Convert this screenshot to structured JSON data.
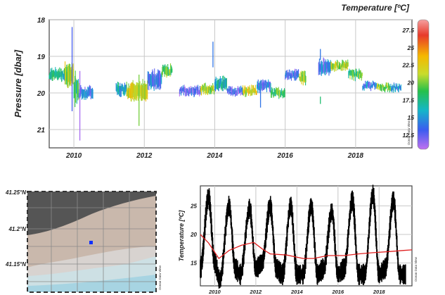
{
  "chart_data": [
    {
      "type": "scatter",
      "title": "Temperature [ºC]",
      "ylabel": "Pressure [dbar]",
      "xlabel": "",
      "xlim": [
        2009.3,
        2019.6
      ],
      "ylim": [
        21.5,
        18
      ],
      "y_reversed": true,
      "x_ticks": [
        "2010",
        "2012",
        "2014",
        "2016",
        "2018"
      ],
      "y_ticks": [
        "18",
        "19",
        "20",
        "21"
      ],
      "colorbar": {
        "ticks": [
          "27.5",
          "25",
          "22.5",
          "20",
          "17.5",
          "15",
          "12.5"
        ],
        "range": [
          10.5,
          29
        ],
        "credit": "Ocean Data View"
      },
      "segments": [
        {
          "t0": 2009.3,
          "t1": 2009.75,
          "p": 19.5,
          "spread": 0.2,
          "temp": 17
        },
        {
          "t0": 2009.75,
          "t1": 2010.0,
          "p": 19.5,
          "spread": 0.45,
          "temp": 21
        },
        {
          "t0": 2010.0,
          "t1": 2010.15,
          "p": 19.9,
          "spread": 0.6,
          "temp": 18
        },
        {
          "t0": 2010.15,
          "t1": 2010.55,
          "p": 20.0,
          "spread": 0.2,
          "temp": 14
        },
        {
          "t0": 2011.2,
          "t1": 2011.5,
          "p": 19.9,
          "spread": 0.2,
          "temp": 16
        },
        {
          "t0": 2011.5,
          "t1": 2012.1,
          "p": 19.95,
          "spread": 0.35,
          "temp": 22
        },
        {
          "t0": 2012.1,
          "t1": 2012.5,
          "p": 19.65,
          "spread": 0.35,
          "temp": 14
        },
        {
          "t0": 2012.5,
          "t1": 2012.8,
          "p": 19.4,
          "spread": 0.2,
          "temp": 19
        },
        {
          "t0": 2013.0,
          "t1": 2013.6,
          "p": 19.95,
          "spread": 0.15,
          "temp": 13
        },
        {
          "t0": 2013.6,
          "t1": 2014.0,
          "p": 19.9,
          "spread": 0.15,
          "temp": 21
        },
        {
          "t0": 2014.0,
          "t1": 2014.35,
          "p": 19.75,
          "spread": 0.25,
          "temp": 16
        },
        {
          "t0": 2014.35,
          "t1": 2014.8,
          "p": 19.95,
          "spread": 0.12,
          "temp": 13
        },
        {
          "t0": 2014.8,
          "t1": 2015.2,
          "p": 19.95,
          "spread": 0.15,
          "temp": 22
        },
        {
          "t0": 2015.2,
          "t1": 2015.6,
          "p": 19.8,
          "spread": 0.2,
          "temp": 14
        },
        {
          "t0": 2015.6,
          "t1": 2016.0,
          "p": 20.0,
          "spread": 0.15,
          "temp": 19
        },
        {
          "t0": 2016.0,
          "t1": 2016.4,
          "p": 19.5,
          "spread": 0.15,
          "temp": 13
        },
        {
          "t0": 2016.4,
          "t1": 2016.6,
          "p": 19.6,
          "spread": 0.2,
          "temp": 20
        },
        {
          "t0": 2016.95,
          "t1": 2017.3,
          "p": 19.3,
          "spread": 0.3,
          "temp": 14
        },
        {
          "t0": 2017.3,
          "t1": 2017.8,
          "p": 19.25,
          "spread": 0.15,
          "temp": 21
        },
        {
          "t0": 2017.8,
          "t1": 2018.2,
          "p": 19.5,
          "spread": 0.15,
          "temp": 19
        },
        {
          "t0": 2018.2,
          "t1": 2018.6,
          "p": 19.8,
          "spread": 0.12,
          "temp": 14
        },
        {
          "t0": 2018.6,
          "t1": 2019.0,
          "p": 19.85,
          "spread": 0.12,
          "temp": 20
        },
        {
          "t0": 2019.0,
          "t1": 2019.3,
          "p": 19.85,
          "spread": 0.12,
          "temp": 14
        }
      ],
      "spikes": [
        {
          "t": 2009.95,
          "p_min": 18.2,
          "p_max": 20.5,
          "temp": 13
        },
        {
          "t": 2010.17,
          "p_min": 19.4,
          "p_max": 21.3,
          "temp": 11
        },
        {
          "t": 2011.85,
          "p_min": 19.5,
          "p_max": 20.9,
          "temp": 20
        },
        {
          "t": 2013.95,
          "p_min": 18.6,
          "p_max": 19.3,
          "temp": 14
        },
        {
          "t": 2015.3,
          "p_min": 19.9,
          "p_max": 20.4,
          "temp": 14
        },
        {
          "t": 2017.0,
          "p_min": 18.8,
          "p_max": 19.1,
          "temp": 14
        },
        {
          "t": 2017.0,
          "p_min": 20.1,
          "p_max": 20.3,
          "temp": 18
        }
      ]
    },
    {
      "type": "map",
      "lat_ticks": [
        "41.25°N",
        "41.2°N",
        "41.15°N"
      ],
      "station": {
        "lat": 41.19,
        "lon": 0.5
      },
      "credit": "Ocean Data View"
    },
    {
      "type": "line",
      "ylabel": "Temperature [ºC]",
      "xlabel": "",
      "xlim": [
        2009.3,
        2019.6
      ],
      "ylim": [
        11,
        28.5
      ],
      "x_ticks": [
        "2010",
        "2012",
        "2014",
        "2016",
        "2018"
      ],
      "y_ticks": [
        "15",
        "20",
        "25"
      ],
      "credit": "Ocean Data View",
      "series": [
        {
          "style": "black",
          "x": [
            2009.3,
            2009.7,
            2010.0,
            2010.25,
            2010.7,
            2011.0,
            2011.25,
            2011.7,
            2012.0,
            2012.3,
            2012.7,
            2013.0,
            2013.3,
            2013.7,
            2014.0,
            2014.3,
            2014.7,
            2015.0,
            2015.3,
            2015.7,
            2016.0,
            2016.3,
            2016.7,
            2017.0,
            2017.3,
            2017.7,
            2018.0,
            2018.3,
            2018.7,
            2019.0,
            2019.3
          ],
          "y": [
            14,
            26.5,
            15,
            12,
            25,
            14,
            13,
            24.5,
            14,
            15,
            25,
            14,
            13,
            25,
            13,
            13,
            25,
            13,
            14,
            24,
            13,
            14,
            26,
            13,
            13,
            27,
            13,
            14,
            26,
            13,
            13
          ]
        },
        {
          "style": "red",
          "x": [
            2009.3,
            2009.7,
            2010.2,
            2010.7,
            2011.3,
            2011.9,
            2012.3,
            2012.7,
            2013.5,
            2014.3,
            2014.8,
            2015.5,
            2016.3,
            2017.0,
            2017.7,
            2018.5,
            2019.2,
            2019.6
          ],
          "y": [
            20,
            18.5,
            15.8,
            17.2,
            18.1,
            18.6,
            17.5,
            16.6,
            16.4,
            15.8,
            15.8,
            16.3,
            16.3,
            16.6,
            16.8,
            17.0,
            17.2,
            17.3
          ]
        }
      ]
    }
  ]
}
